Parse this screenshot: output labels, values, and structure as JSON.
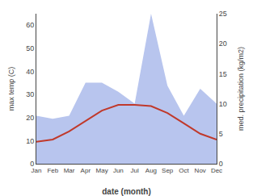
{
  "chart_data": {
    "type": "line",
    "categories": [
      "Jan",
      "Feb",
      "Mar",
      "Apr",
      "May",
      "Jun",
      "Jul",
      "Aug",
      "Sep",
      "Oct",
      "Nov",
      "Dec"
    ],
    "xlabel": "date (month)",
    "ylabel": "max temp (C)",
    "y2label": "med. precipitation (kg/m2)",
    "series": [
      {
        "type": "area",
        "color": "#b8c5ee",
        "axis": "y2",
        "values": [
          8.0,
          7.5,
          8.0,
          13.5,
          13.5,
          12.0,
          10.0,
          25.0,
          13.0,
          8.0,
          12.5,
          10.0
        ]
      },
      {
        "type": "line",
        "color": "#c0392b",
        "values": [
          9.5,
          10.5,
          14.0,
          18.5,
          23.0,
          25.5,
          25.5,
          25.0,
          22.0,
          17.5,
          13.0,
          10.5
        ]
      }
    ],
    "ylim": [
      0,
      65
    ],
    "yticks": [
      0,
      10,
      20,
      30,
      40,
      50,
      60
    ],
    "y2lim": [
      0,
      25
    ],
    "y2ticks": [
      0,
      5,
      10,
      15,
      20,
      25
    ],
    "grid": false
  }
}
